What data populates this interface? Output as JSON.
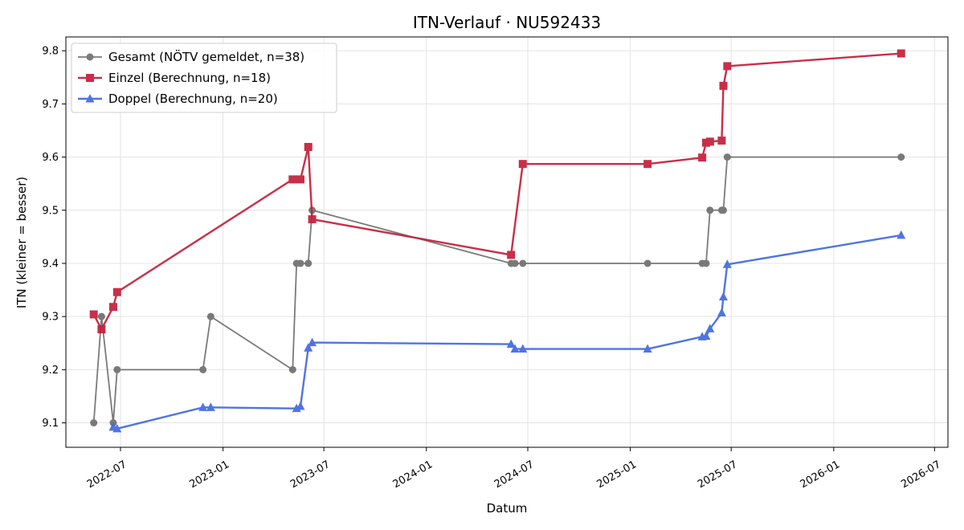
{
  "chart_data": {
    "type": "line",
    "title": "ITN-Verlauf · NU592433",
    "xlabel": "Datum",
    "ylabel": "ITN  (kleiner = besser)",
    "x_axis": {
      "type": "date",
      "range": [
        "2022-03-25",
        "2026-07-25"
      ],
      "ticks": [
        "2022-07-01",
        "2023-01-01",
        "2023-07-01",
        "2024-01-01",
        "2024-07-01",
        "2025-01-01",
        "2025-07-01",
        "2026-01-01",
        "2026-07-01"
      ],
      "tick_labels": [
        "2022-07",
        "2023-01",
        "2023-07",
        "2024-01",
        "2024-07",
        "2025-01",
        "2025-07",
        "2026-01",
        "2026-07"
      ]
    },
    "y_axis": {
      "range": [
        9.054,
        9.826
      ],
      "ticks": [
        9.1,
        9.2,
        9.3,
        9.4,
        9.5,
        9.6,
        9.7,
        9.8
      ],
      "tick_labels": [
        "9.1",
        "9.2",
        "9.3",
        "9.4",
        "9.5",
        "9.6",
        "9.7",
        "9.8"
      ]
    },
    "grid": true,
    "legend_position": "top-left",
    "series": [
      {
        "name": "Gesamt (NÖTV gemeldet, n=38)",
        "color": "#555555",
        "marker": "circle",
        "points": [
          [
            "2022-05-14",
            9.1
          ],
          [
            "2022-05-28",
            9.3
          ],
          [
            "2022-06-18",
            9.1
          ],
          [
            "2022-06-25",
            9.2
          ],
          [
            "2022-11-26",
            9.2
          ],
          [
            "2022-12-10",
            9.3
          ],
          [
            "2023-05-06",
            9.2
          ],
          [
            "2023-05-13",
            9.4
          ],
          [
            "2023-05-20",
            9.4
          ],
          [
            "2023-06-03",
            9.4
          ],
          [
            "2023-06-10",
            9.5
          ],
          [
            "2024-06-01",
            9.4
          ],
          [
            "2024-06-08",
            9.4
          ],
          [
            "2024-06-22",
            9.4
          ],
          [
            "2025-02-01",
            9.4
          ],
          [
            "2025-05-10",
            9.4
          ],
          [
            "2025-05-17",
            9.4
          ],
          [
            "2025-05-24",
            9.5
          ],
          [
            "2025-06-14",
            9.5
          ],
          [
            "2025-06-17",
            9.5
          ],
          [
            "2025-06-24",
            9.6
          ],
          [
            "2026-05-02",
            9.6
          ]
        ]
      },
      {
        "name": "Einzel (Berechnung, n=18)",
        "color": "#c41e3a",
        "marker": "square",
        "points": [
          [
            "2022-05-14",
            9.304
          ],
          [
            "2022-05-28",
            9.276
          ],
          [
            "2022-06-18",
            9.318
          ],
          [
            "2022-06-25",
            9.346
          ],
          [
            "2023-05-06",
            9.558
          ],
          [
            "2023-05-20",
            9.558
          ],
          [
            "2023-06-03",
            9.619
          ],
          [
            "2023-06-10",
            9.483
          ],
          [
            "2024-06-01",
            9.416
          ],
          [
            "2024-06-22",
            9.587
          ],
          [
            "2025-02-01",
            9.587
          ],
          [
            "2025-05-10",
            9.599
          ],
          [
            "2025-05-17",
            9.627
          ],
          [
            "2025-05-24",
            9.629
          ],
          [
            "2025-06-14",
            9.631
          ],
          [
            "2025-06-17",
            9.734
          ],
          [
            "2025-06-24",
            9.771
          ],
          [
            "2026-05-02",
            9.795
          ]
        ]
      },
      {
        "name": "Doppel (Berechnung, n=20)",
        "color": "#4169e1",
        "marker": "triangle",
        "points": [
          [
            "2022-06-18",
            9.092
          ],
          [
            "2022-06-25",
            9.089
          ],
          [
            "2022-11-26",
            9.129
          ],
          [
            "2022-12-10",
            9.129
          ],
          [
            "2023-05-13",
            9.127
          ],
          [
            "2023-05-20",
            9.131
          ],
          [
            "2023-06-03",
            9.241
          ],
          [
            "2023-06-10",
            9.251
          ],
          [
            "2024-06-01",
            9.248
          ],
          [
            "2024-06-08",
            9.239
          ],
          [
            "2024-06-22",
            9.239
          ],
          [
            "2025-02-01",
            9.239
          ],
          [
            "2025-05-10",
            9.262
          ],
          [
            "2025-05-17",
            9.263
          ],
          [
            "2025-05-24",
            9.277
          ],
          [
            "2025-06-14",
            9.307
          ],
          [
            "2025-06-17",
            9.337
          ],
          [
            "2025-06-24",
            9.398
          ],
          [
            "2026-05-02",
            9.453
          ]
        ]
      }
    ]
  }
}
